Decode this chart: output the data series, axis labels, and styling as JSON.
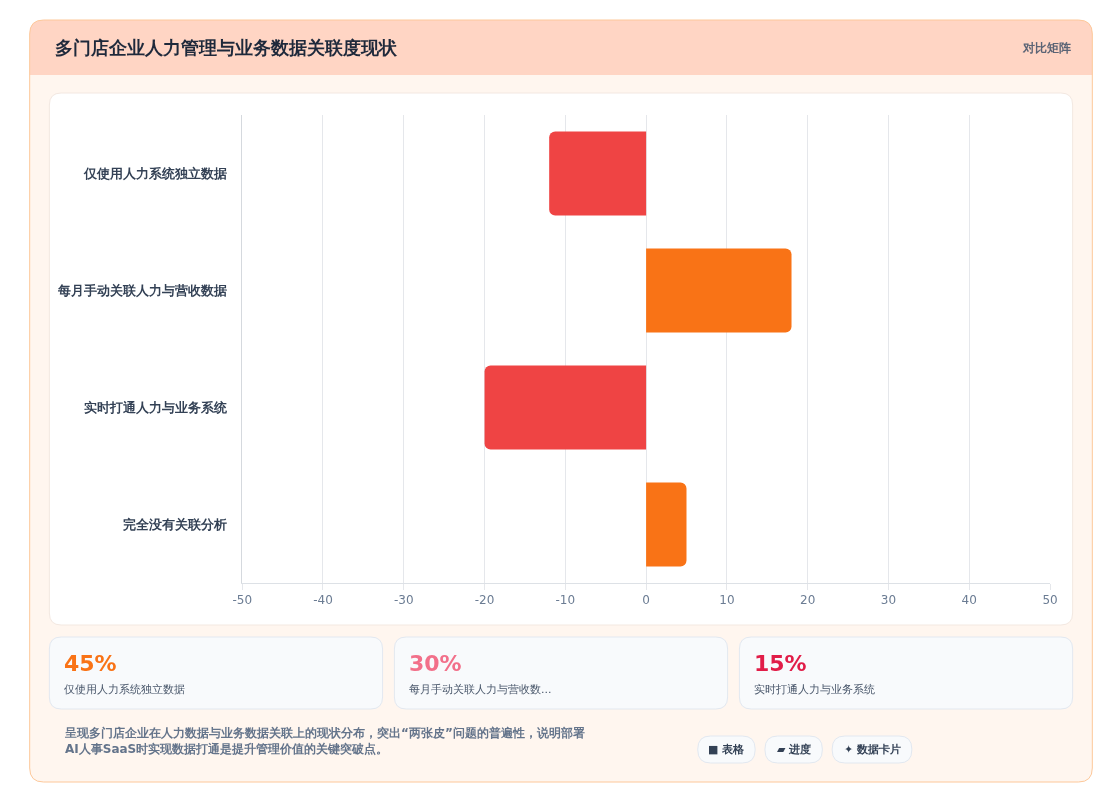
{
  "chart_data": [
    {
      "type": "bar",
      "title": "多门店企业人力管理与业务数据关联度现状",
      "orientation": "horizontal",
      "categories": [
        "仅使用人力系统独立数据",
        "每月手动关联人力与营收数据",
        "实时打通人力与业务系统",
        "完全没有关联分析"
      ],
      "values": [
        -12,
        18,
        -20,
        5
      ],
      "colors": [
        "#ef4444",
        "#f97316",
        "#ef4444",
        "#f97316"
      ],
      "xlim": [
        -50,
        50
      ],
      "xticks": [
        -50,
        -40,
        -30,
        -20,
        -10,
        0,
        10,
        20,
        30,
        40,
        50
      ],
      "grid": "x",
      "annotations": [
        "对比矩阵",
        "呈现多门店企业在人力数据与业务数据关联上的现状分布，突出“两张皮”问题的普遍性，说明部署AI人事SaaS时实现数据打通是提升管理价值的关键突破点。",
        "■ 表格",
        "▰ 进度",
        "✦ 数据卡片"
      ]
    },
    {
      "type": "other",
      "color": "#f97316",
      "annotations": [
        "45%",
        "仅使用人力系统独立数据"
      ]
    },
    {
      "type": "other",
      "color": "#f2708a",
      "annotations": [
        "30%",
        "每月手动关联人力与营收数..."
      ]
    },
    {
      "type": "other",
      "color": "#e11d48",
      "annotations": [
        "15%",
        "实时打通人力与业务系统"
      ]
    }
  ]
}
